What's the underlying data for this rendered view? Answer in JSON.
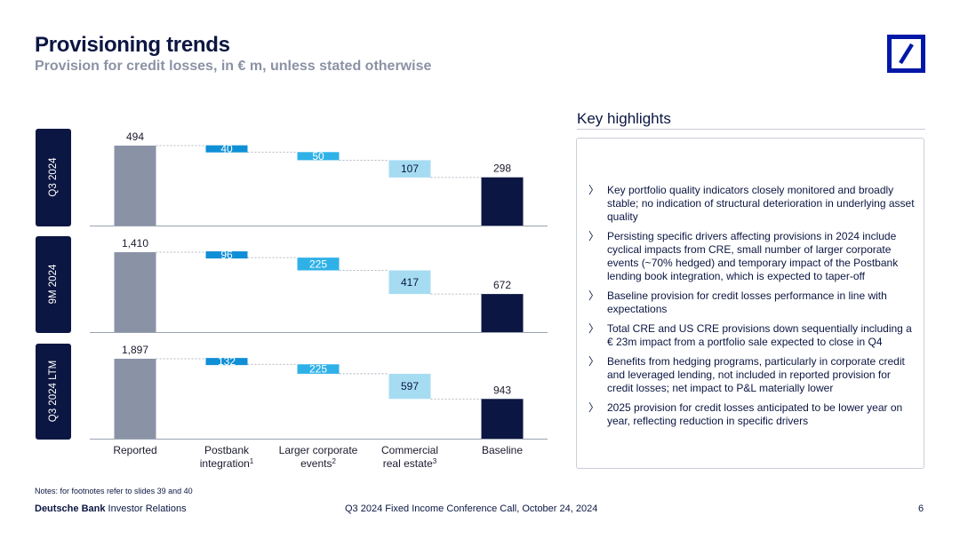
{
  "header": {
    "title": "Provisioning trends",
    "subtitle": "Provision for credit losses, in € m, unless stated otherwise"
  },
  "colors": {
    "reported": "#8a93a6",
    "baseline": "#0b1642",
    "postbank": "#0f8fd6",
    "larger_corporate": "#2fb1e8",
    "cre": "#a6dcf2",
    "panel_label_bg": "#0b1642"
  },
  "chart_data": {
    "type": "bar",
    "subtype": "waterfall",
    "categories": [
      "Reported",
      "Postbank integration",
      "Larger corporate events",
      "Commercial real estate",
      "Baseline"
    ],
    "category_labels": [
      {
        "text": "Reported",
        "sup": ""
      },
      {
        "line1": "Postbank",
        "text": "integration",
        "sup": "1"
      },
      {
        "line1": "Larger corporate",
        "text": "events",
        "sup": "2"
      },
      {
        "line1": "Commercial",
        "text": "real estate",
        "sup": "3"
      },
      {
        "text": "Baseline",
        "sup": ""
      }
    ],
    "panels": [
      {
        "label": "Q3 2024",
        "reported": 494,
        "postbank": 40,
        "larger_corporate": 50,
        "cre": 107,
        "baseline": 298,
        "value_labels": [
          "494",
          "40",
          "50",
          "107",
          "298"
        ]
      },
      {
        "label": "9M 2024",
        "reported": 1410,
        "postbank": 96,
        "larger_corporate": 225,
        "cre": 417,
        "baseline": 672,
        "value_labels": [
          "1,410",
          "96",
          "225",
          "417",
          "672"
        ]
      },
      {
        "label": "Q3 2024 LTM",
        "reported": 1897,
        "postbank": 132,
        "larger_corporate": 225,
        "cre": 597,
        "baseline": 943,
        "value_labels": [
          "1,897",
          "132",
          "225",
          "597",
          "943"
        ]
      }
    ]
  },
  "highlights": {
    "title": "Key highlights",
    "items": [
      "Key portfolio quality indicators closely monitored and broadly stable; no indication of structural deterioration in underlying asset quality",
      "Persisting specific drivers affecting provisions in 2024 include cyclical impacts from CRE, small number of larger corporate events (~70% hedged) and temporary impact of the Postbank lending book integration, which is expected to taper-off",
      "Baseline provision for credit losses performance in line with expectations",
      "Total CRE and US CRE provisions down sequentially including a € 23m impact from a portfolio sale expected to close in Q4",
      "Benefits from hedging programs, particularly in corporate credit and leveraged lending, not included in reported provision for credit losses; net impact to P&L materially lower",
      "2025 provision for credit losses anticipated to be lower year on year, reflecting reduction in specific drivers"
    ]
  },
  "notes": "Notes: for footnotes refer to slides 39 and 40",
  "footer": {
    "brand": "Deutsche Bank",
    "division": " Investor Relations",
    "event": "Q3 2024 Fixed Income Conference Call, October 24, 2024",
    "page": "6"
  }
}
